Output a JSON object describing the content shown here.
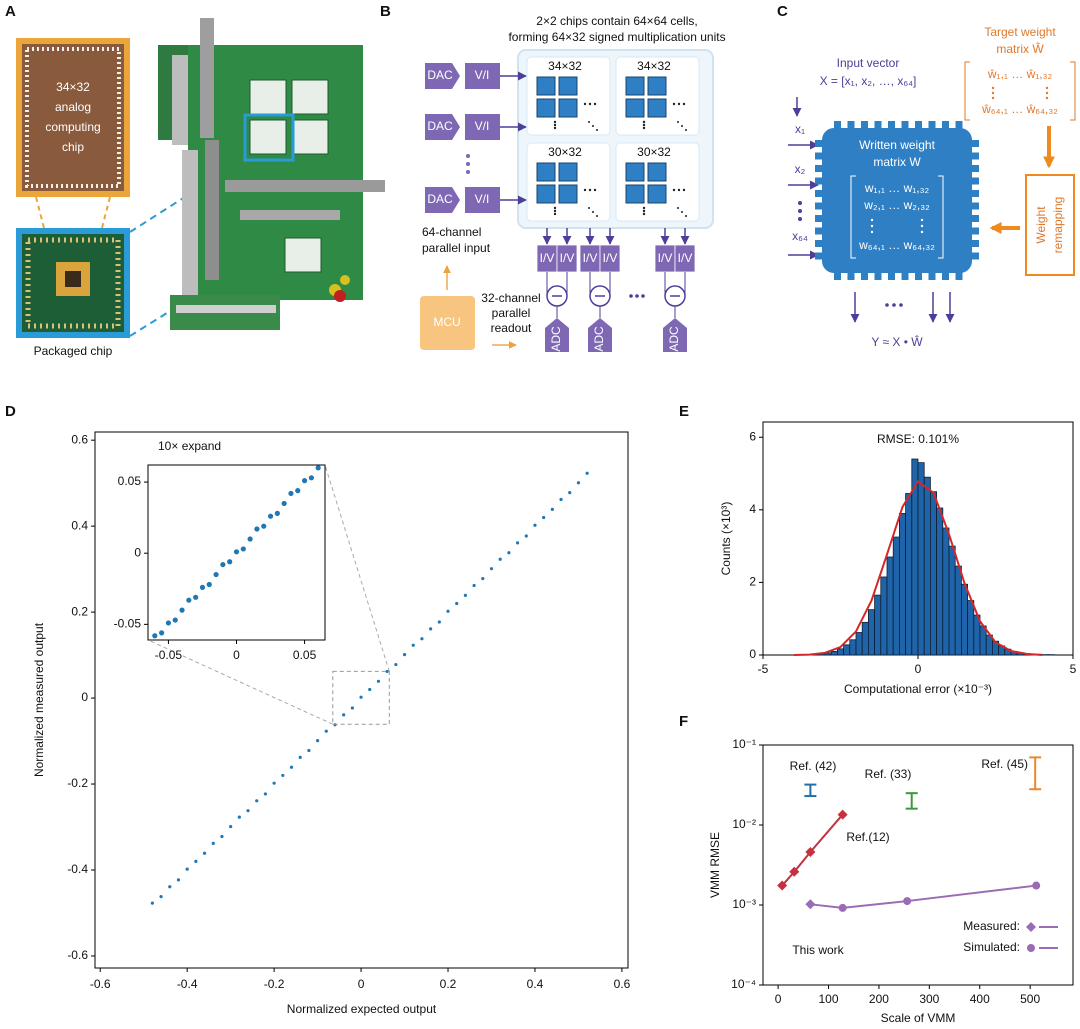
{
  "panel_labels": [
    "A",
    "B",
    "C",
    "D",
    "E",
    "F"
  ],
  "panel_a": {
    "chip_label": [
      "34×32",
      "analog",
      "computing",
      "chip"
    ],
    "package_label": "Packaged chip"
  },
  "panel_b": {
    "title": [
      "2×2 chips contain 64×64 cells,",
      "forming 64×32 signed multiplication units"
    ],
    "dac": [
      "DAC",
      "DAC",
      "DAC"
    ],
    "vi": [
      "V/I",
      "V/I",
      "V/I"
    ],
    "cores": [
      "34×32",
      "34×32",
      "30×32",
      "30×32"
    ],
    "input_note": [
      "64-channel",
      "parallel input"
    ],
    "readout_note": [
      "32-channel",
      "parallel",
      "readout"
    ],
    "mcu": "MCU",
    "iv": [
      "I/V",
      "I/V",
      "I/V",
      "I/V",
      "I/V",
      "I/V"
    ],
    "adc": [
      "ADC",
      "ADC",
      "ADC"
    ]
  },
  "panel_c": {
    "input_title": "Input vector",
    "input_vector": "X = [x₁, x₂, …, x₆₄]",
    "target_title": [
      "Target weight",
      "matrix Ŵ"
    ],
    "target_rows": [
      "ŵ₁,₁ … ŵ₁,₃₂",
      "ŵ₆₄,₁ … ŵ₆₄,₃₂"
    ],
    "written_title": [
      "Written weight",
      "matrix W"
    ],
    "written_rows": [
      "w₁,₁ … w₁,₃₂",
      "w₂,₁ … w₂,₃₂",
      "w₆₄,₁ … w₆₄,₃₂"
    ],
    "inputs": [
      "x₁",
      "x₂",
      "x₆₄"
    ],
    "remap": [
      "Weight",
      "remapping"
    ],
    "output": "Y ≈ X • Ŵ"
  },
  "chart_data": [
    {
      "type": "scatter",
      "xlabel": "Normalized expected output",
      "ylabel": "Normalized measured output",
      "color": "#1f77b4",
      "x": [
        -0.48,
        -0.46,
        -0.44,
        -0.42,
        -0.4,
        -0.38,
        -0.36,
        -0.34,
        -0.32,
        -0.3,
        -0.28,
        -0.26,
        -0.24,
        -0.22,
        -0.2,
        -0.18,
        -0.16,
        -0.14,
        -0.12,
        -0.1,
        -0.08,
        -0.06,
        -0.04,
        -0.02,
        0,
        0.02,
        0.04,
        0.06,
        0.08,
        0.1,
        0.12,
        0.14,
        0.16,
        0.18,
        0.2,
        0.22,
        0.24,
        0.26,
        0.28,
        0.3,
        0.32,
        0.34,
        0.36,
        0.38,
        0.4,
        0.42,
        0.44,
        0.46,
        0.48,
        0.5,
        0.52
      ],
      "values": [
        -0.477,
        -0.462,
        -0.439,
        -0.423,
        -0.398,
        -0.38,
        -0.361,
        -0.338,
        -0.322,
        -0.299,
        -0.277,
        -0.262,
        -0.239,
        -0.223,
        -0.198,
        -0.18,
        -0.161,
        -0.138,
        -0.122,
        -0.099,
        -0.077,
        -0.062,
        -0.039,
        -0.023,
        0.002,
        0.02,
        0.039,
        0.062,
        0.078,
        0.101,
        0.123,
        0.138,
        0.161,
        0.177,
        0.202,
        0.22,
        0.239,
        0.262,
        0.278,
        0.301,
        0.323,
        0.338,
        0.361,
        0.377,
        0.402,
        0.42,
        0.439,
        0.462,
        0.478,
        0.501,
        0.523
      ],
      "xlim": [
        -0.612,
        0.614
      ],
      "ylim": [
        -0.628,
        0.619
      ],
      "xticks": [
        -0.6,
        -0.4,
        -0.2,
        0,
        0.2,
        0.4,
        0.6
      ],
      "yticks": [
        -0.6,
        -0.4,
        -0.2,
        0,
        0.2,
        0.4,
        0.6
      ]
    },
    {
      "type": "scatter",
      "title": "10× expand",
      "color": "#1f77b4",
      "x": [
        -0.06,
        -0.055,
        -0.05,
        -0.045,
        -0.04,
        -0.035,
        -0.03,
        -0.025,
        -0.02,
        -0.015,
        -0.01,
        -0.005,
        0,
        0.005,
        0.01,
        0.015,
        0.02,
        0.025,
        0.03,
        0.035,
        0.04,
        0.045,
        0.05,
        0.055,
        0.06
      ],
      "values": [
        -0.058,
        -0.056,
        -0.049,
        -0.047,
        -0.04,
        -0.033,
        -0.031,
        -0.024,
        -0.022,
        -0.015,
        -0.008,
        -0.006,
        0.001,
        0.003,
        0.01,
        0.017,
        0.019,
        0.026,
        0.028,
        0.035,
        0.042,
        0.044,
        0.051,
        0.053,
        0.06
      ],
      "xlim": [
        -0.065,
        0.065
      ],
      "ylim": [
        -0.061,
        0.062
      ],
      "xticks": [
        -0.05,
        0,
        0.05
      ],
      "yticks": [
        -0.05,
        0,
        0.05
      ]
    },
    {
      "type": "histogram",
      "annotation": "RMSE: 0.101%",
      "xlabel": "Computational error (×10⁻³)",
      "ylabel": "Counts (×10³)",
      "color": "#1f64a8",
      "edgecolor": "#0d1f33",
      "bins": [
        -3.4,
        -3.2,
        -3,
        -2.8,
        -2.6,
        -2.4,
        -2.2,
        -2,
        -1.8,
        -1.6,
        -1.4,
        -1.2,
        -1,
        -0.8,
        -0.6,
        -0.4,
        -0.2,
        0,
        0.2,
        0.4,
        0.6,
        0.8,
        1,
        1.2,
        1.4,
        1.6,
        1.8,
        2,
        2.2,
        2.4,
        2.6,
        2.8,
        3,
        3.2,
        3.4,
        3.6,
        3.8,
        4,
        4.2,
        4.4
      ],
      "counts": [
        0.02,
        0.04,
        0.06,
        0.1,
        0.17,
        0.28,
        0.42,
        0.62,
        0.9,
        1.25,
        1.65,
        2.15,
        2.7,
        3.25,
        3.9,
        4.45,
        5.4,
        5.3,
        4.9,
        4.5,
        4.05,
        3.5,
        3.0,
        2.45,
        1.95,
        1.5,
        1.1,
        0.8,
        0.55,
        0.38,
        0.25,
        0.16,
        0.1,
        0.06,
        0.04,
        0.03,
        0.02,
        0.01,
        0.01
      ],
      "fit": {
        "color": "#d62728",
        "x": [
          -4,
          -3.5,
          -3,
          -2.5,
          -2,
          -1.5,
          -1,
          -0.5,
          0,
          0.5,
          1,
          1.5,
          2,
          2.5,
          3,
          3.5,
          4
        ],
        "values": [
          0,
          0.01,
          0.06,
          0.22,
          0.65,
          1.5,
          2.77,
          4.08,
          4.78,
          4.47,
          3.33,
          1.98,
          0.93,
          0.35,
          0.11,
          0.03,
          0
        ]
      },
      "xlim": [
        -5,
        5
      ],
      "ylim": [
        0,
        6.42
      ],
      "xticks": [
        -5,
        0,
        5
      ],
      "yticks": [
        0,
        2,
        4,
        6
      ]
    },
    {
      "type": "line",
      "yscale": "log",
      "xlabel": "Scale of VMM",
      "ylabel": "VMM RMSE",
      "xlim": [
        -30,
        585
      ],
      "ylim": [
        0.0001,
        0.1
      ],
      "xticks": [
        0,
        100,
        200,
        300,
        400,
        500
      ],
      "yticks": [
        {
          "value": 0.0001,
          "label": "10⁻⁴"
        },
        {
          "value": 0.001,
          "label": "10⁻³"
        },
        {
          "value": 0.01,
          "label": "10⁻²"
        },
        {
          "value": 0.1,
          "label": "10⁻¹"
        }
      ],
      "series": [
        {
          "name": "This work",
          "color": "#9b6bb5",
          "x": [
            64,
            128,
            256,
            512
          ],
          "values": [
            0.00102,
            0.00092,
            0.00112,
            0.00175
          ],
          "markers": [
            "diamond",
            "circle",
            "circle",
            "circle"
          ]
        },
        {
          "name": "Ref.(12)",
          "color": "#c4323f",
          "x": [
            8,
            32,
            64,
            128
          ],
          "values": [
            0.00175,
            0.0026,
            0.0046,
            0.0135
          ],
          "markers": [
            "diamond",
            "diamond",
            "diamond",
            "diamond"
          ]
        },
        {
          "name": "Ref. (42)",
          "color": "#1f6fa8",
          "x": [
            64
          ],
          "low": [
            0.023
          ],
          "high": [
            0.032
          ]
        },
        {
          "name": "Ref. (33)",
          "color": "#3a9a3a",
          "x": [
            265
          ],
          "low": [
            0.016
          ],
          "high": [
            0.025
          ]
        },
        {
          "name": "Ref. (45)",
          "color": "#e8892a",
          "x": [
            510
          ],
          "low": [
            0.028
          ],
          "high": [
            0.07
          ]
        }
      ],
      "legend": [
        {
          "label": "Measured:",
          "marker": "diamond"
        },
        {
          "label": "Simulated:",
          "marker": "circle"
        }
      ]
    }
  ]
}
